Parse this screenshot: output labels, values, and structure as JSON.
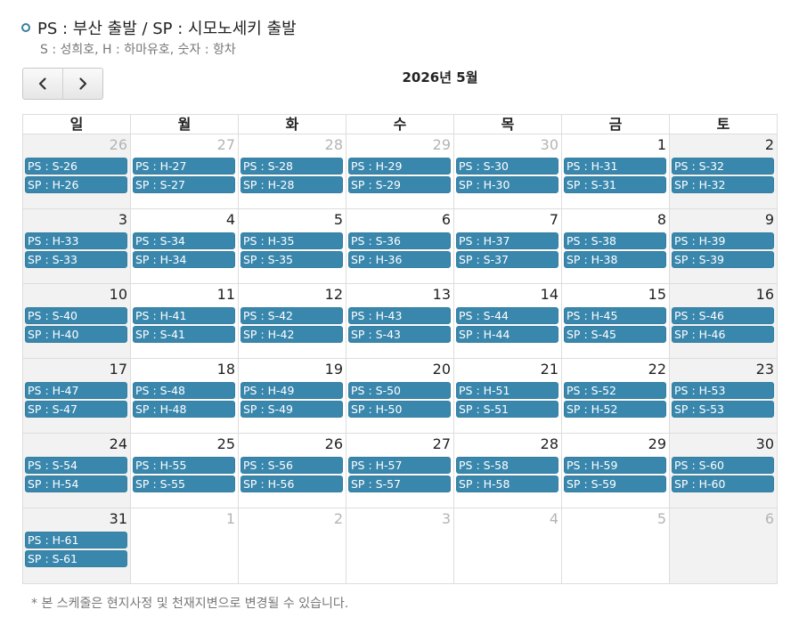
{
  "legend": {
    "title": "PS : 부산 출발 / SP : 시모노세키 출발",
    "subtitle": "S : 성희호, H : 하마유호, 숫자 : 항차"
  },
  "nav": {
    "prev_icon": "chevron-left-icon",
    "next_icon": "chevron-right-icon"
  },
  "month_title": "2026년 5월",
  "weekdays": [
    "일",
    "월",
    "화",
    "수",
    "목",
    "금",
    "토"
  ],
  "weeks": [
    [
      {
        "day": "26",
        "other": true,
        "ps": "PS : S-26",
        "sp": "SP : H-26"
      },
      {
        "day": "27",
        "other": true,
        "ps": "PS : H-27",
        "sp": "SP : S-27"
      },
      {
        "day": "28",
        "other": true,
        "ps": "PS : S-28",
        "sp": "SP : H-28"
      },
      {
        "day": "29",
        "other": true,
        "ps": "PS : H-29",
        "sp": "SP : S-29"
      },
      {
        "day": "30",
        "other": true,
        "ps": "PS : S-30",
        "sp": "SP : H-30"
      },
      {
        "day": "1",
        "other": false,
        "ps": "PS : H-31",
        "sp": "SP : S-31"
      },
      {
        "day": "2",
        "other": false,
        "ps": "PS : S-32",
        "sp": "SP : H-32"
      }
    ],
    [
      {
        "day": "3",
        "other": false,
        "ps": "PS : H-33",
        "sp": "SP : S-33"
      },
      {
        "day": "4",
        "other": false,
        "ps": "PS : S-34",
        "sp": "SP : H-34"
      },
      {
        "day": "5",
        "other": false,
        "ps": "PS : H-35",
        "sp": "SP : S-35"
      },
      {
        "day": "6",
        "other": false,
        "ps": "PS : S-36",
        "sp": "SP : H-36"
      },
      {
        "day": "7",
        "other": false,
        "ps": "PS : H-37",
        "sp": "SP : S-37"
      },
      {
        "day": "8",
        "other": false,
        "ps": "PS : S-38",
        "sp": "SP : H-38"
      },
      {
        "day": "9",
        "other": false,
        "ps": "PS : H-39",
        "sp": "SP : S-39"
      }
    ],
    [
      {
        "day": "10",
        "other": false,
        "ps": "PS : S-40",
        "sp": "SP : H-40"
      },
      {
        "day": "11",
        "other": false,
        "ps": "PS : H-41",
        "sp": "SP : S-41"
      },
      {
        "day": "12",
        "other": false,
        "ps": "PS : S-42",
        "sp": "SP : H-42"
      },
      {
        "day": "13",
        "other": false,
        "ps": "PS : H-43",
        "sp": "SP : S-43"
      },
      {
        "day": "14",
        "other": false,
        "ps": "PS : S-44",
        "sp": "SP : H-44"
      },
      {
        "day": "15",
        "other": false,
        "ps": "PS : H-45",
        "sp": "SP : S-45"
      },
      {
        "day": "16",
        "other": false,
        "ps": "PS : S-46",
        "sp": "SP : H-46"
      }
    ],
    [
      {
        "day": "17",
        "other": false,
        "ps": "PS : H-47",
        "sp": "SP : S-47"
      },
      {
        "day": "18",
        "other": false,
        "ps": "PS : S-48",
        "sp": "SP : H-48"
      },
      {
        "day": "19",
        "other": false,
        "ps": "PS : H-49",
        "sp": "SP : S-49"
      },
      {
        "day": "20",
        "other": false,
        "ps": "PS : S-50",
        "sp": "SP : H-50"
      },
      {
        "day": "21",
        "other": false,
        "ps": "PS : H-51",
        "sp": "SP : S-51"
      },
      {
        "day": "22",
        "other": false,
        "ps": "PS : S-52",
        "sp": "SP : H-52"
      },
      {
        "day": "23",
        "other": false,
        "ps": "PS : H-53",
        "sp": "SP : S-53"
      }
    ],
    [
      {
        "day": "24",
        "other": false,
        "ps": "PS : S-54",
        "sp": "SP : H-54"
      },
      {
        "day": "25",
        "other": false,
        "ps": "PS : H-55",
        "sp": "SP : S-55"
      },
      {
        "day": "26",
        "other": false,
        "ps": "PS : S-56",
        "sp": "SP : H-56"
      },
      {
        "day": "27",
        "other": false,
        "ps": "PS : H-57",
        "sp": "SP : S-57"
      },
      {
        "day": "28",
        "other": false,
        "ps": "PS : S-58",
        "sp": "SP : H-58"
      },
      {
        "day": "29",
        "other": false,
        "ps": "PS : H-59",
        "sp": "SP : S-59"
      },
      {
        "day": "30",
        "other": false,
        "ps": "PS : S-60",
        "sp": "SP : H-60"
      }
    ],
    [
      {
        "day": "31",
        "other": false,
        "ps": "PS : H-61",
        "sp": "SP : S-61"
      },
      {
        "day": "1",
        "other": true
      },
      {
        "day": "2",
        "other": true
      },
      {
        "day": "3",
        "other": true
      },
      {
        "day": "4",
        "other": true
      },
      {
        "day": "5",
        "other": true
      },
      {
        "day": "6",
        "other": true
      }
    ]
  ],
  "note": "* 본 스케줄은 현지사정 및 천재지변으로 변경될 수 있습니다.",
  "colors": {
    "event_bg": "#3a87ad",
    "weekend_bg": "#f2f2f2",
    "accent": "#3a7fa0"
  }
}
